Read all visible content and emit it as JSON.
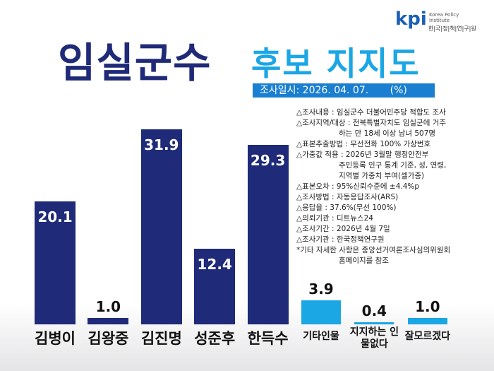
{
  "chart_data": {
    "type": "bar",
    "title_main": "임실군수",
    "title_accent": "후보 지지도",
    "subtitle": "조사일시: 2026. 04. 07.",
    "unit": "(%)",
    "categories": [
      "김병이",
      "김왕중",
      "김진명",
      "성준후",
      "한득수",
      "기타인물",
      "지지하는 인물없다",
      "잘모르겠다"
    ],
    "values": [
      20.1,
      1.0,
      31.9,
      12.4,
      29.3,
      3.9,
      0.4,
      1.0
    ],
    "value_labels": [
      "20.1",
      "1.0",
      "31.9",
      "12.4",
      "29.3",
      "3.9",
      "0.4",
      "1.0"
    ],
    "colors": [
      "#1f2a78",
      "#1f2a78",
      "#1f2a78",
      "#1f2a78",
      "#1f2a78",
      "#1ba6e4",
      "#1ba6e4",
      "#1ba6e4"
    ],
    "notes": [
      [
        "△조사내용 : 임실군수 더불어민주당 적합도 조사"
      ],
      [
        "△조사지역/대상 : 전북특별자치도  임실군에 거주",
        "하는 만 18세 이상 남녀 507명"
      ],
      [
        "△표본추출방법 : 무선전화 100% 가상번호"
      ],
      [
        "△가중값 적용 : 2026년 3월말 행정안전부",
        "주민등록 인구 통계 기준, 성, 연령,",
        "지역별 가중치 부여(셀가중)"
      ],
      [
        "△표본오차 : 95%신뢰수준에 ±4.4%p"
      ],
      [
        "△조사방법 : 자동응답조사(ARS)"
      ],
      [
        "△응답율 : 37.6%(무선 100%)"
      ],
      [
        "△의뢰기관 : 디트뉴스24"
      ],
      [
        "△조사기간 : 2026년 4월 7일"
      ],
      [
        "△조사기관 : 한국정책연구원"
      ],
      [
        "*기타 자세한 사항은 중앙선거여론조사심의위원회",
        "홈페이지를 참조"
      ]
    ],
    "logo": {
      "mark": "kpi",
      "en": [
        "Korea Policy",
        "Institute"
      ],
      "ko": "한|국|정|책|연|구|원"
    }
  }
}
